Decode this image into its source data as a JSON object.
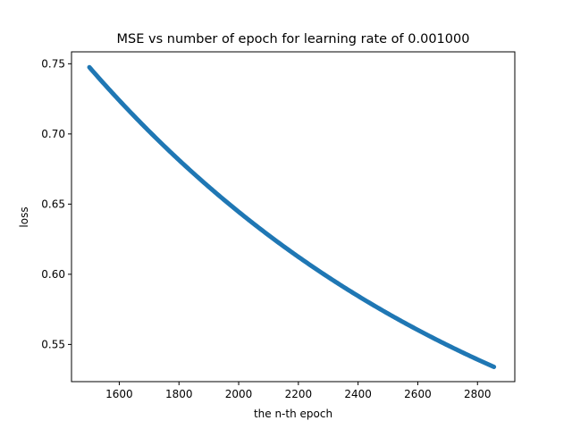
{
  "chart_data": {
    "type": "line",
    "title": "MSE vs number of epoch for learning rate of 0.001000",
    "xlabel": "the n-th epoch",
    "ylabel": "loss",
    "xlim": [
      1440,
      2925
    ],
    "ylim": [
      0.5235,
      0.7585
    ],
    "x_ticks": [
      1600,
      1800,
      2000,
      2200,
      2400,
      2600,
      2800
    ],
    "y_ticks": [
      0.55,
      0.6,
      0.65,
      0.7,
      0.75
    ],
    "x_tick_labels": [
      "1600",
      "1800",
      "2000",
      "2200",
      "2400",
      "2600",
      "2800"
    ],
    "y_tick_labels": [
      "0.55",
      "0.60",
      "0.65",
      "0.70",
      "0.75"
    ],
    "grid": false,
    "color": "#1f77b4",
    "series": [
      {
        "x": [
          1500,
          1550,
          1600,
          1650,
          1700,
          1750,
          1800,
          1850,
          1900,
          1950,
          2000,
          2050,
          2100,
          2150,
          2200,
          2250,
          2300,
          2350,
          2400,
          2450,
          2500,
          2550,
          2600,
          2650,
          2700,
          2750,
          2800,
          2855
        ],
        "y": [
          0.7475,
          0.7349,
          0.7227,
          0.7109,
          0.6995,
          0.6884,
          0.6777,
          0.6673,
          0.6572,
          0.6475,
          0.6381,
          0.629,
          0.6201,
          0.6116,
          0.6033,
          0.5953,
          0.5876,
          0.5801,
          0.5729,
          0.5658,
          0.5591,
          0.5525,
          0.5462,
          0.54,
          0.5341,
          0.5284,
          0.5228,
          0.534
        ]
      }
    ]
  }
}
